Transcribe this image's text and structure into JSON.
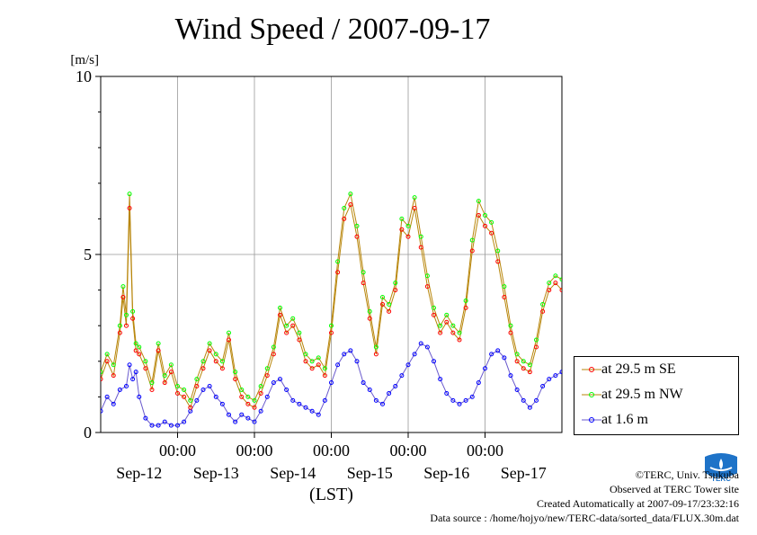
{
  "chart_data": {
    "type": "line",
    "title": "Wind Speed / 2007-09-17",
    "ylabel": "[m/s]",
    "xlabel": "(LST)",
    "ylim": [
      0,
      10
    ],
    "yticks": [
      "0",
      "5",
      "10"
    ],
    "xlim_hours": [
      0,
      144
    ],
    "x_time_labels": [
      "00:00",
      "00:00",
      "00:00",
      "00:00",
      "00:00"
    ],
    "x_date_labels": [
      "Sep-12",
      "Sep-13",
      "Sep-14",
      "Sep-15",
      "Sep-16",
      "Sep-17"
    ],
    "grid": true,
    "legend_position": "right",
    "series": [
      {
        "name": "at 29.5 m SE",
        "color": "#ff0000",
        "line_color": "#b8860b",
        "x_hours": [
          0,
          2,
          4,
          6,
          7,
          8,
          9,
          10,
          11,
          12,
          14,
          16,
          18,
          20,
          22,
          24,
          26,
          28,
          30,
          32,
          34,
          36,
          38,
          40,
          42,
          44,
          46,
          48,
          50,
          52,
          54,
          56,
          58,
          60,
          62,
          64,
          66,
          68,
          70,
          72,
          74,
          76,
          78,
          80,
          82,
          84,
          86,
          88,
          90,
          92,
          94,
          96,
          98,
          100,
          102,
          104,
          106,
          108,
          110,
          112,
          114,
          116,
          118,
          120,
          122,
          124,
          126,
          128,
          130,
          132,
          134,
          136,
          138,
          140,
          142,
          144
        ],
        "values": [
          1.5,
          2.0,
          1.6,
          2.8,
          3.8,
          3.0,
          6.3,
          3.2,
          2.3,
          2.2,
          1.8,
          1.2,
          2.3,
          1.4,
          1.7,
          1.1,
          1.0,
          0.7,
          1.3,
          1.8,
          2.3,
          2.0,
          1.8,
          2.6,
          1.5,
          1.0,
          0.8,
          0.7,
          1.1,
          1.6,
          2.2,
          3.3,
          2.8,
          3.0,
          2.6,
          2.0,
          1.8,
          1.9,
          1.6,
          2.8,
          4.5,
          6.0,
          6.4,
          5.5,
          4.2,
          3.2,
          2.2,
          3.6,
          3.4,
          4.0,
          5.7,
          5.5,
          6.3,
          5.2,
          4.1,
          3.3,
          2.8,
          3.1,
          2.8,
          2.6,
          3.5,
          5.1,
          6.1,
          5.8,
          5.6,
          4.8,
          3.8,
          2.8,
          2.0,
          1.8,
          1.7,
          2.4,
          3.4,
          4.0,
          4.2,
          4.0
        ]
      },
      {
        "name": "at 29.5 m NW",
        "color": "#00ff00",
        "line_color": "#b8860b",
        "x_hours": [
          0,
          2,
          4,
          6,
          7,
          8,
          9,
          10,
          11,
          12,
          14,
          16,
          18,
          20,
          22,
          24,
          26,
          28,
          30,
          32,
          34,
          36,
          38,
          40,
          42,
          44,
          46,
          48,
          50,
          52,
          54,
          56,
          58,
          60,
          62,
          64,
          66,
          68,
          70,
          72,
          74,
          76,
          78,
          80,
          82,
          84,
          86,
          88,
          90,
          92,
          94,
          96,
          98,
          100,
          102,
          104,
          106,
          108,
          110,
          112,
          114,
          116,
          118,
          120,
          122,
          124,
          126,
          128,
          130,
          132,
          134,
          136,
          138,
          140,
          142,
          144
        ],
        "values": [
          1.7,
          2.2,
          1.9,
          3.0,
          4.1,
          3.3,
          6.7,
          3.4,
          2.5,
          2.4,
          2.0,
          1.4,
          2.5,
          1.6,
          1.9,
          1.3,
          1.2,
          0.9,
          1.5,
          2.0,
          2.5,
          2.2,
          2.0,
          2.8,
          1.7,
          1.2,
          1.0,
          0.9,
          1.3,
          1.8,
          2.4,
          3.5,
          3.0,
          3.2,
          2.8,
          2.2,
          2.0,
          2.1,
          1.8,
          3.0,
          4.8,
          6.3,
          6.7,
          5.8,
          4.5,
          3.4,
          2.4,
          3.8,
          3.6,
          4.2,
          6.0,
          5.8,
          6.6,
          5.5,
          4.4,
          3.5,
          3.0,
          3.3,
          3.0,
          2.8,
          3.7,
          5.4,
          6.5,
          6.1,
          5.9,
          5.1,
          4.1,
          3.0,
          2.2,
          2.0,
          1.9,
          2.6,
          3.6,
          4.2,
          4.4,
          4.3
        ]
      },
      {
        "name": "at 1.6 m",
        "color": "#0000ff",
        "line_color": "#6a5acd",
        "x_hours": [
          0,
          2,
          4,
          6,
          8,
          9,
          10,
          11,
          12,
          14,
          16,
          18,
          20,
          22,
          24,
          26,
          28,
          30,
          32,
          34,
          36,
          38,
          40,
          42,
          44,
          46,
          48,
          50,
          52,
          54,
          56,
          58,
          60,
          62,
          64,
          66,
          68,
          70,
          72,
          74,
          76,
          78,
          80,
          82,
          84,
          86,
          88,
          90,
          92,
          94,
          96,
          98,
          100,
          102,
          104,
          106,
          108,
          110,
          112,
          114,
          116,
          118,
          120,
          122,
          124,
          126,
          128,
          130,
          132,
          134,
          136,
          138,
          140,
          142,
          144
        ],
        "values": [
          0.6,
          1.0,
          0.8,
          1.2,
          1.3,
          1.9,
          1.5,
          1.7,
          1.0,
          0.4,
          0.2,
          0.2,
          0.3,
          0.2,
          0.2,
          0.3,
          0.6,
          0.9,
          1.2,
          1.3,
          1.0,
          0.8,
          0.5,
          0.3,
          0.5,
          0.4,
          0.3,
          0.6,
          1.0,
          1.4,
          1.5,
          1.2,
          0.9,
          0.8,
          0.7,
          0.6,
          0.5,
          0.9,
          1.4,
          1.9,
          2.2,
          2.3,
          2.0,
          1.4,
          1.2,
          0.9,
          0.8,
          1.1,
          1.3,
          1.6,
          1.9,
          2.2,
          2.5,
          2.4,
          2.0,
          1.5,
          1.1,
          0.9,
          0.8,
          0.9,
          1.0,
          1.4,
          1.8,
          2.2,
          2.3,
          2.1,
          1.6,
          1.2,
          0.9,
          0.7,
          0.9,
          1.3,
          1.5,
          1.6,
          1.7
        ]
      }
    ]
  },
  "footer": {
    "copyright": "©TERC, Univ. Tsukuba",
    "observed": "Observed at TERC Tower site",
    "created": "Created Automatically at 2007-09-17/23:32:16",
    "source": "Data source : /home/hojyo/new/TERC-data/sorted_data/FLUX.30m.dat"
  },
  "logo": {
    "text": "TERC",
    "color": "#1e73c8"
  }
}
